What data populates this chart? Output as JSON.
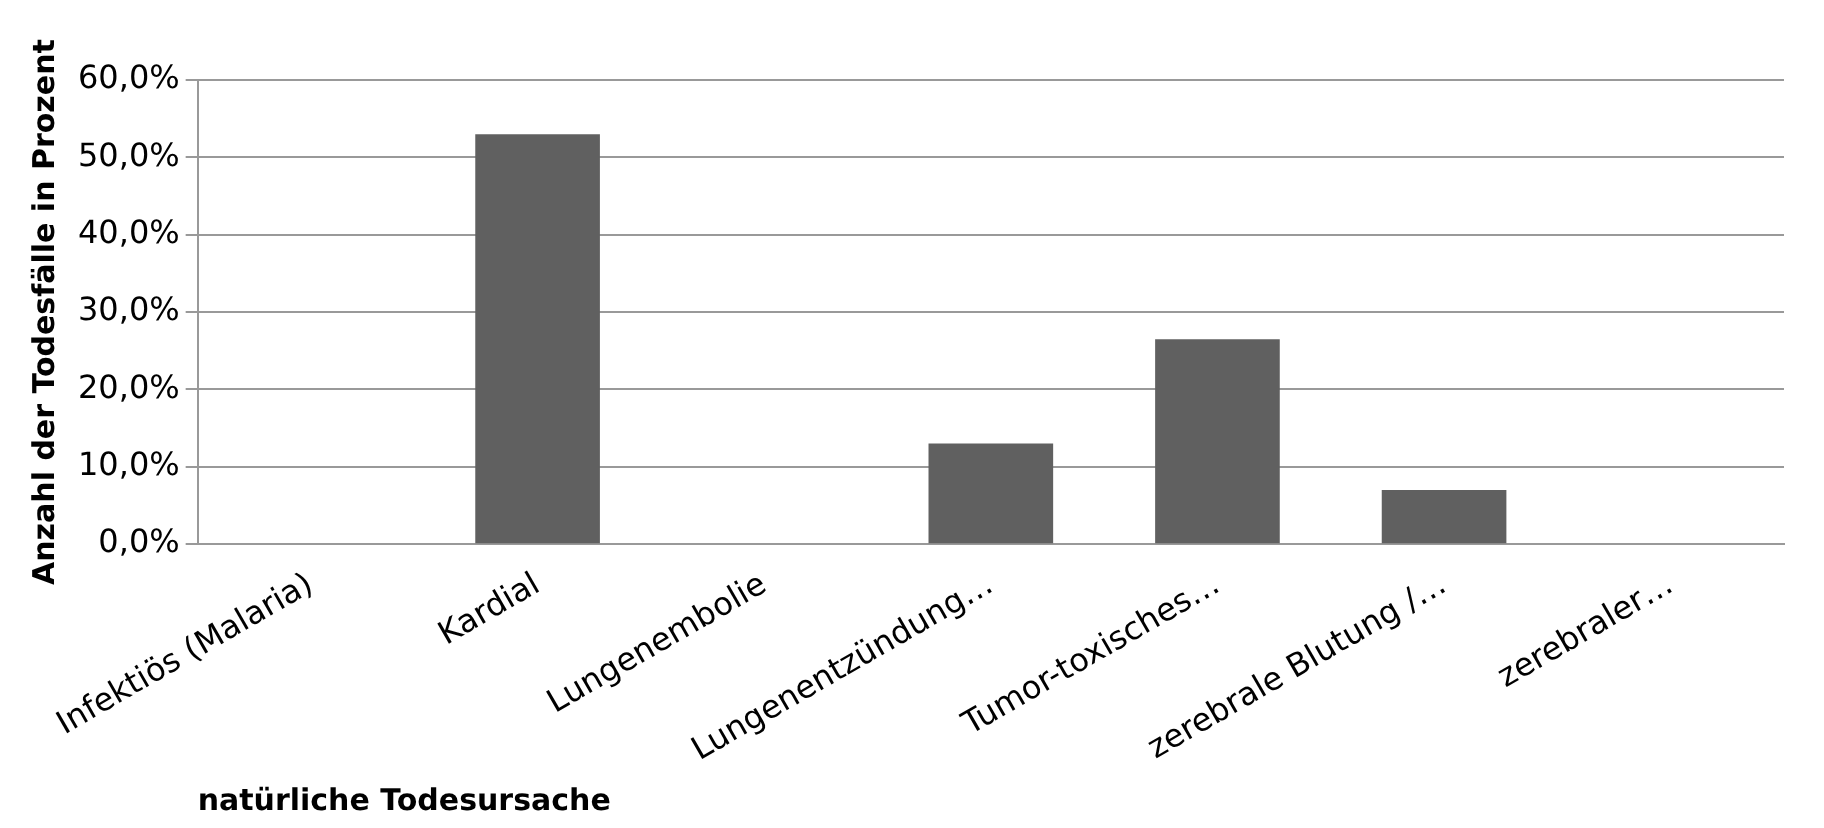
{
  "chart_data": {
    "type": "bar",
    "xlabel": "natürliche Todesursache",
    "ylabel": "Anzahl der Todesfälle in Prozent",
    "categories": [
      "Infektiös (Malaria)",
      "Kardial",
      "Lungenembolie",
      "Lungenentzündung…",
      "Tumor-toxisches…",
      "zerebrale Blutung /…",
      "zerebraler…"
    ],
    "values": [
      0,
      53,
      0,
      13,
      26.5,
      7,
      0
    ],
    "color": "#606060",
    "ylim": [
      0,
      60
    ],
    "yticks": [
      {
        "value": 0,
        "label": "0,0%"
      },
      {
        "value": 10,
        "label": "10,0%"
      },
      {
        "value": 20,
        "label": "20,0%"
      },
      {
        "value": 30,
        "label": "30,0%"
      },
      {
        "value": 40,
        "label": "40,0%"
      },
      {
        "value": 50,
        "label": "50,0%"
      },
      {
        "value": 60,
        "label": "60,0%"
      }
    ],
    "grid": "y",
    "legend": false
  }
}
